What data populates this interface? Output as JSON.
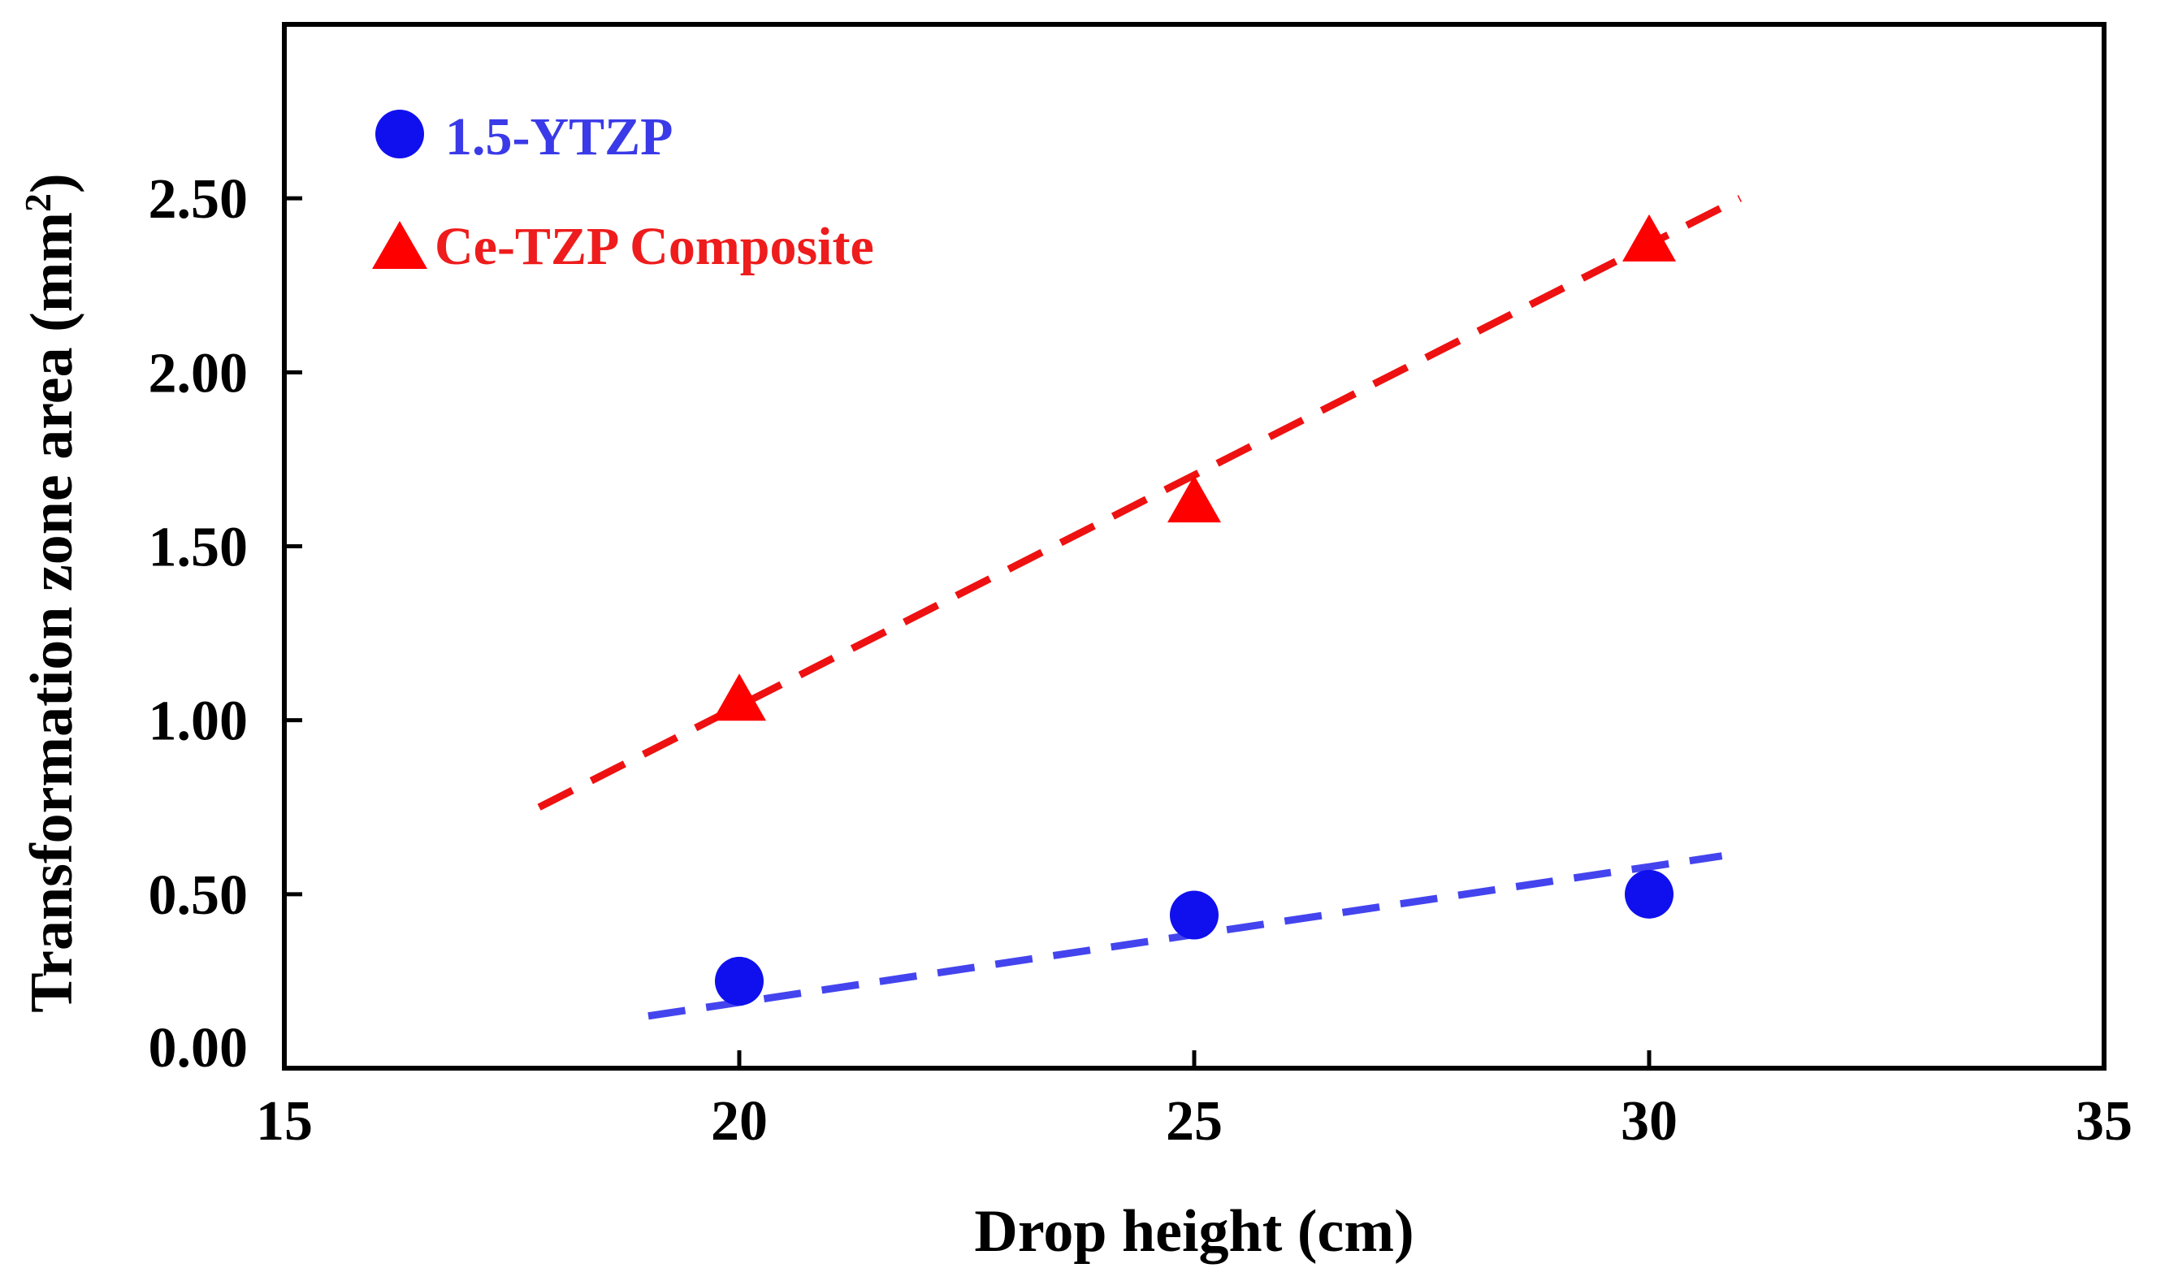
{
  "chart_data": {
    "type": "scatter",
    "title": "",
    "xlabel": "Drop height (cm)",
    "ylabel": "Transformation zone area (mm",
    "ylabel_sup": "2",
    "ylabel_close": ")",
    "xlim": [
      15,
      35
    ],
    "ylim": [
      0,
      3.0
    ],
    "xticks": [
      15,
      20,
      25,
      30,
      35
    ],
    "xtick_labels": [
      "15",
      "20",
      "25",
      "30",
      "35"
    ],
    "yticks": [
      0,
      0.5,
      1.0,
      1.5,
      2.0,
      2.5
    ],
    "ytick_labels": [
      "0.00",
      "0.50",
      "1.00",
      "1.50",
      "2.00",
      "2.50"
    ],
    "grid": false,
    "legend_position": "top-left",
    "series": [
      {
        "name": "1.5-YTZP",
        "marker": "circle",
        "color": "#1010ee",
        "label_color": "#3a3ae8",
        "x": [
          20,
          25,
          30
        ],
        "y": [
          0.25,
          0.44,
          0.5
        ],
        "trend": {
          "color": "#4444ee",
          "x": [
            19.0,
            30.8
          ],
          "y": [
            0.15,
            0.61
          ]
        }
      },
      {
        "name": "Ce-TZP Composite",
        "marker": "triangle",
        "color": "#ff0000",
        "label_color": "#ee1c1c",
        "x": [
          20,
          25,
          30
        ],
        "y": [
          1.05,
          1.62,
          2.37
        ],
        "trend": {
          "color": "#ee1111",
          "x": [
            17.8,
            31.0
          ],
          "y": [
            0.75,
            2.5
          ]
        }
      }
    ]
  }
}
